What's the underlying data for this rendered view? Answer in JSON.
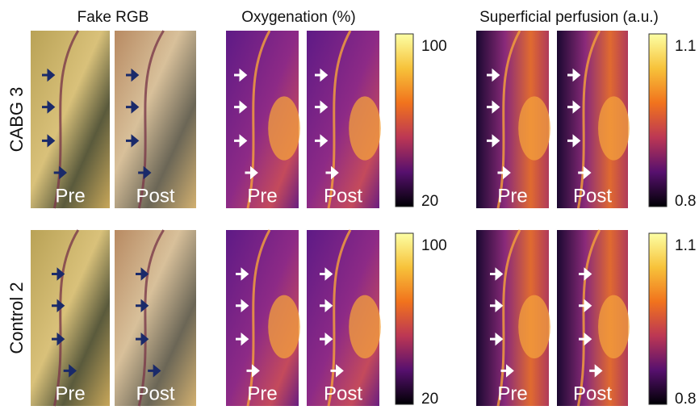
{
  "columns": [
    "Fake RGB",
    "Oxygenation (%)",
    "Superficial perfusion (a.u.)"
  ],
  "rows": [
    {
      "label": "CABG 3",
      "panels": [
        "Pre",
        "Post",
        "Pre",
        "Post",
        "Pre",
        "Post"
      ],
      "colorbars": [
        {
          "max": "100",
          "min": "20"
        },
        {
          "max": "1.1",
          "min": "0.8"
        }
      ]
    },
    {
      "label": "Control 2",
      "panels": [
        "Pre",
        "Post",
        "Pre",
        "Post",
        "Pre",
        "Post"
      ],
      "colorbars": [
        {
          "max": "100",
          "min": "20"
        },
        {
          "max": "1.1",
          "min": "0.8"
        }
      ]
    }
  ]
}
